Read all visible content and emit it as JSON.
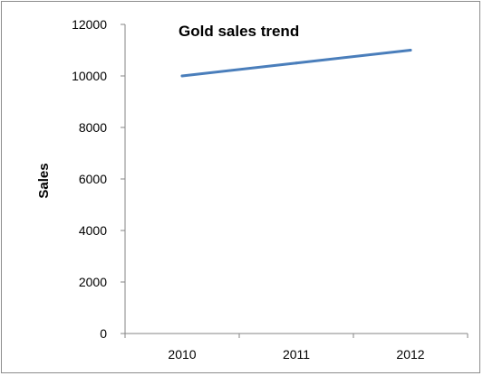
{
  "chart_data": {
    "type": "line",
    "title": "Gold sales trend",
    "xlabel": "",
    "ylabel": "Sales",
    "categories": [
      "2010",
      "2011",
      "2012"
    ],
    "series": [
      {
        "values": [
          10000,
          10500,
          11000
        ]
      }
    ],
    "ylim": [
      0,
      12000
    ],
    "yticks": [
      "0",
      "2000",
      "4000",
      "6000",
      "8000",
      "10000",
      "12000"
    ],
    "ytick_values": [
      0,
      2000,
      4000,
      6000,
      8000,
      10000,
      12000
    ],
    "grid": false,
    "legend": "none",
    "line_color": "#4a7ebb"
  }
}
